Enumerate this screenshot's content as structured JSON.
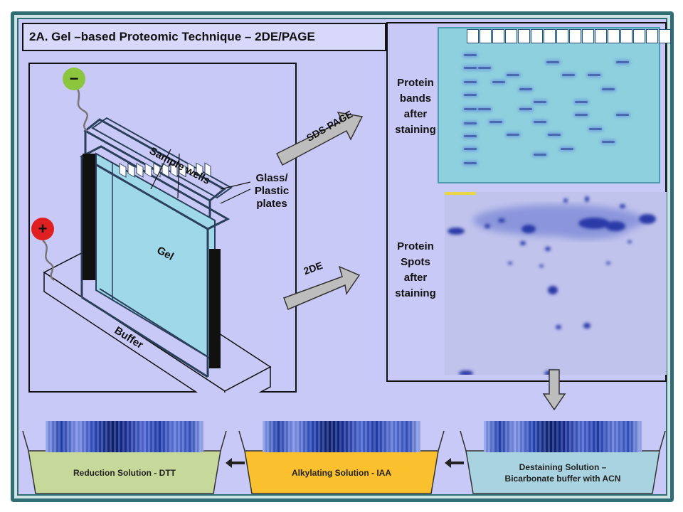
{
  "title": "2A. Gel –based Proteomic Technique – 2DE/PAGE",
  "labels": {
    "sample_wells": "Sample wells",
    "glass_plates": [
      "Glass/",
      "Plastic",
      "plates"
    ],
    "gel": "Gel",
    "buffer": "Buffer",
    "sds_page": "SDS-PAGE",
    "two_de": "2DE",
    "protein_bands": [
      "Protein",
      "bands",
      "after",
      "staining"
    ],
    "protein_spots": [
      "Protein",
      "Spots",
      "after",
      "staining"
    ],
    "minus": "−",
    "plus": "+"
  },
  "solutions": {
    "reduction": "Reduction Solution - DTT",
    "alkylating": "Alkylating Solution - IAA",
    "destaining_line1": "Destaining Solution –",
    "destaining_line2": "Bicarbonate buffer with ACN"
  },
  "colors": {
    "background": "#c9c9f7",
    "border": "#2f6f73",
    "reduction_fill": "#c6d89a",
    "alkylating_fill": "#fbc02d",
    "destaining_fill": "#a9d3e0",
    "sds_panel": "#8fd0de",
    "gel_fill": "#9fd8e8",
    "negative_electrode": "#8cc63f",
    "positive_electrode": "#e02020"
  }
}
